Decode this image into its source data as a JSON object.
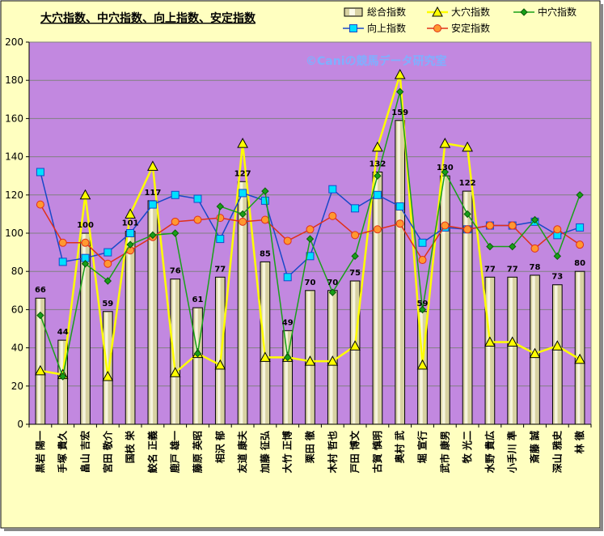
{
  "chart_data": {
    "type": "bar",
    "title": "大穴指数、中穴指数、向上指数、安定指数",
    "watermark": "©Caniの競馬データ研究室",
    "ylim": [
      0,
      200
    ],
    "yticks": [
      0,
      20,
      40,
      60,
      80,
      100,
      120,
      140,
      160,
      180,
      200
    ],
    "grid": true,
    "legend_position": "top-right",
    "categories": [
      "黒岩 陽一",
      "手塚 貴久",
      "畠山 吉宏",
      "宮田 敬介",
      "国枝 栄",
      "鮫名 正義",
      "鹿戸 雄一",
      "藤原 英昭",
      "相沢 郁",
      "友道 康夫",
      "加藤 征弘",
      "大竹 正博",
      "栗田 徹",
      "木村 哲也",
      "戸田 博文",
      "古賀 慎明",
      "奥村 武",
      "堀 宣行",
      "武市 康男",
      "牧 光二",
      "水野 貴広",
      "小手川 準",
      "斎藤 誠",
      "深山 雅史",
      "林 徹"
    ],
    "series": [
      {
        "name": "総合指数",
        "kind": "bar",
        "color": "#d8d2a2",
        "values": [
          66,
          44,
          100,
          59,
          101,
          117,
          76,
          61,
          77,
          127,
          85,
          49,
          70,
          70,
          75,
          132,
          159,
          59,
          130,
          122,
          77,
          77,
          78,
          73,
          80
        ]
      },
      {
        "name": "大穴指数",
        "kind": "line",
        "color": "#ffff00",
        "marker": "triangle",
        "values": [
          28,
          26,
          120,
          25,
          110,
          135,
          27,
          37,
          31,
          147,
          35,
          35,
          33,
          33,
          41,
          145,
          183,
          31,
          147,
          145,
          43,
          43,
          37,
          41,
          34
        ]
      },
      {
        "name": "中穴指数",
        "kind": "line",
        "color": "#18a018",
        "marker": "diamond",
        "values": [
          57,
          25,
          84,
          75,
          94,
          99,
          100,
          37,
          114,
          110,
          122,
          35,
          97,
          69,
          88,
          130,
          174,
          60,
          132,
          110,
          93,
          93,
          107,
          88,
          120
        ]
      },
      {
        "name": "向上指数",
        "kind": "line",
        "color": "#1848c8",
        "marker": "square",
        "values": [
          132,
          85,
          87,
          90,
          100,
          115,
          120,
          118,
          97,
          121,
          117,
          77,
          88,
          123,
          113,
          120,
          114,
          95,
          103,
          102,
          104,
          104,
          106,
          99,
          103
        ]
      },
      {
        "name": "安定指数",
        "kind": "line",
        "color": "#e03018",
        "marker": "circle",
        "values": [
          115,
          95,
          95,
          84,
          91,
          98,
          106,
          107,
          108,
          106,
          107,
          96,
          102,
          109,
          99,
          102,
          105,
          86,
          104,
          102,
          104,
          104,
          92,
          102,
          94
        ]
      }
    ]
  }
}
